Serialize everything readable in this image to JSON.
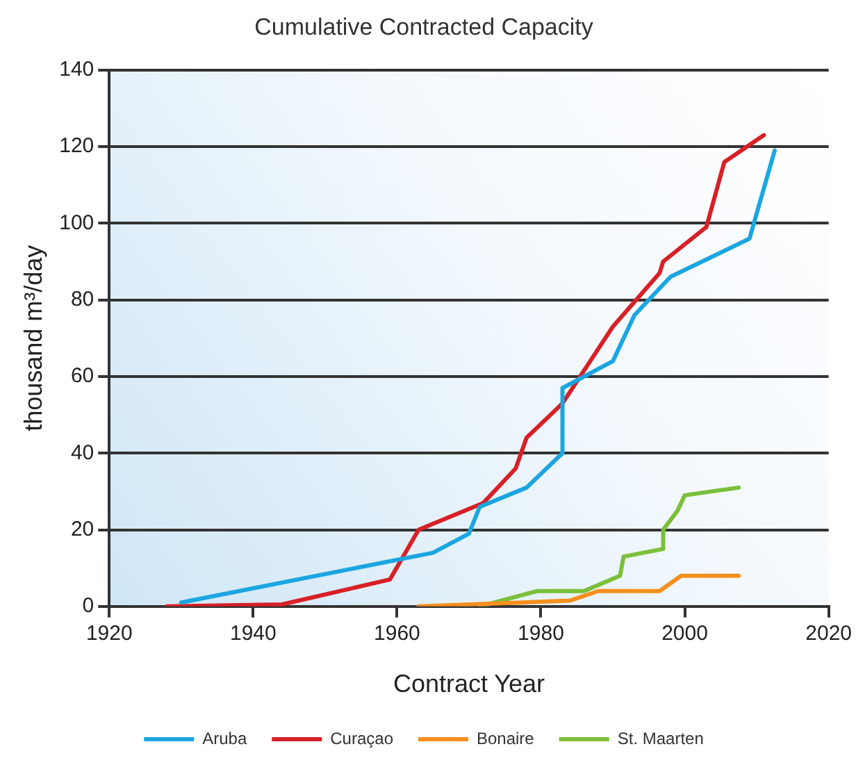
{
  "chart_data": {
    "type": "line",
    "title": "Cumulative Contracted Capacity",
    "xlabel": "Contract Year",
    "ylabel": "thousand m³/day",
    "xlim": [
      1920,
      2020
    ],
    "xticks": [
      1920,
      1940,
      1960,
      1980,
      2000,
      2020
    ],
    "ylim": [
      0,
      140
    ],
    "yticks": [
      0,
      20,
      40,
      60,
      80,
      100,
      120,
      140
    ],
    "grid": "y",
    "legend": "bottom",
    "marker": "none",
    "line_style": "solid",
    "series": [
      {
        "name": "Aruba",
        "color": "#1ba6e0",
        "x": [
          1930,
          1965,
          1970,
          1971.5,
          1978,
          1983,
          1983,
          1990,
          1993,
          1998,
          2009,
          2012.5
        ],
        "values": [
          1,
          14,
          19,
          26,
          31,
          40,
          57,
          64,
          76,
          86,
          96,
          119
        ]
      },
      {
        "name": "Curaçao",
        "color": "#d72027",
        "x": [
          1928,
          1944,
          1959,
          1963,
          1972,
          1976.5,
          1978,
          1983,
          1990,
          1996.5,
          1997,
          2003,
          2005.5,
          2011
        ],
        "values": [
          0,
          0.5,
          7,
          20,
          27,
          36,
          44,
          53,
          73,
          87,
          90,
          99,
          116,
          123
        ]
      },
      {
        "name": "Bonaire",
        "color": "#f5901e",
        "x": [
          1963,
          1984,
          1988,
          1996.5,
          1999.5,
          2007.5
        ],
        "values": [
          0,
          1.5,
          4,
          4,
          8,
          8
        ]
      },
      {
        "name": "St. Maarten",
        "color": "#7bbf3a",
        "x": [
          1971.5,
          1979.5,
          1986,
          1991,
          1991.5,
          1997,
          1997,
          1999,
          2000,
          2007.5
        ],
        "values": [
          0,
          4,
          4,
          8,
          13,
          15,
          20,
          25,
          29,
          31
        ]
      }
    ]
  }
}
